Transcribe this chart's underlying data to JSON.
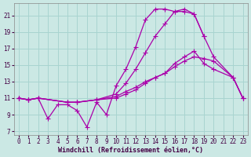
{
  "xlabel": "Windchill (Refroidissement éolien,°C)",
  "background_color": "#cbe8e4",
  "grid_color": "#a8d4d0",
  "line_color": "#aa00aa",
  "xlim": [
    -0.5,
    23.5
  ],
  "ylim": [
    6.5,
    22.5
  ],
  "xticks": [
    0,
    1,
    2,
    3,
    4,
    5,
    6,
    7,
    8,
    9,
    10,
    11,
    12,
    13,
    14,
    15,
    16,
    17,
    18,
    19,
    20,
    21,
    22,
    23
  ],
  "yticks": [
    7,
    9,
    11,
    13,
    15,
    17,
    19,
    21
  ],
  "lines": [
    {
      "x": [
        0,
        1,
        2,
        5,
        6,
        8,
        10,
        11,
        12,
        13,
        14,
        15,
        16,
        17,
        18,
        19,
        20,
        22,
        23
      ],
      "y": [
        11,
        10.8,
        11,
        10.5,
        10.5,
        10.8,
        11.2,
        11.8,
        12.3,
        13.0,
        13.5,
        14.0,
        14.8,
        15.5,
        16.0,
        15.8,
        15.5,
        13.5,
        11.0
      ]
    },
    {
      "x": [
        0,
        1,
        2,
        5,
        6,
        8,
        10,
        11,
        12,
        13,
        14,
        15,
        16,
        17,
        18,
        19,
        20,
        22,
        23
      ],
      "y": [
        11,
        10.8,
        11,
        10.5,
        10.5,
        10.8,
        11.5,
        12.8,
        14.5,
        16.5,
        18.5,
        20.0,
        21.5,
        21.5,
        21.2,
        18.5,
        16.0,
        13.5,
        11.0
      ]
    },
    {
      "x": [
        0,
        1,
        2,
        3,
        4,
        5,
        6,
        7,
        8,
        9,
        10,
        11,
        12,
        13,
        14,
        15,
        16,
        17,
        18,
        19
      ],
      "y": [
        11,
        10.8,
        11,
        8.5,
        10.2,
        10.2,
        9.5,
        7.5,
        10.5,
        9.0,
        12.5,
        14.5,
        17.2,
        20.5,
        21.8,
        21.8,
        21.5,
        21.8,
        21.2,
        18.5
      ]
    },
    {
      "x": [
        0,
        1,
        2,
        5,
        6,
        8,
        10,
        11,
        12,
        13,
        14,
        15,
        16,
        17,
        18,
        19,
        20,
        22,
        23
      ],
      "y": [
        11,
        10.8,
        11,
        10.5,
        10.5,
        10.8,
        11.0,
        11.5,
        12.0,
        12.8,
        13.5,
        14.0,
        15.2,
        16.0,
        16.7,
        15.2,
        14.5,
        13.5,
        11.0
      ]
    }
  ],
  "marker": "+",
  "markersize": 4,
  "linewidth": 0.9,
  "fontsize_label": 6,
  "fontsize_tick": 5.5
}
